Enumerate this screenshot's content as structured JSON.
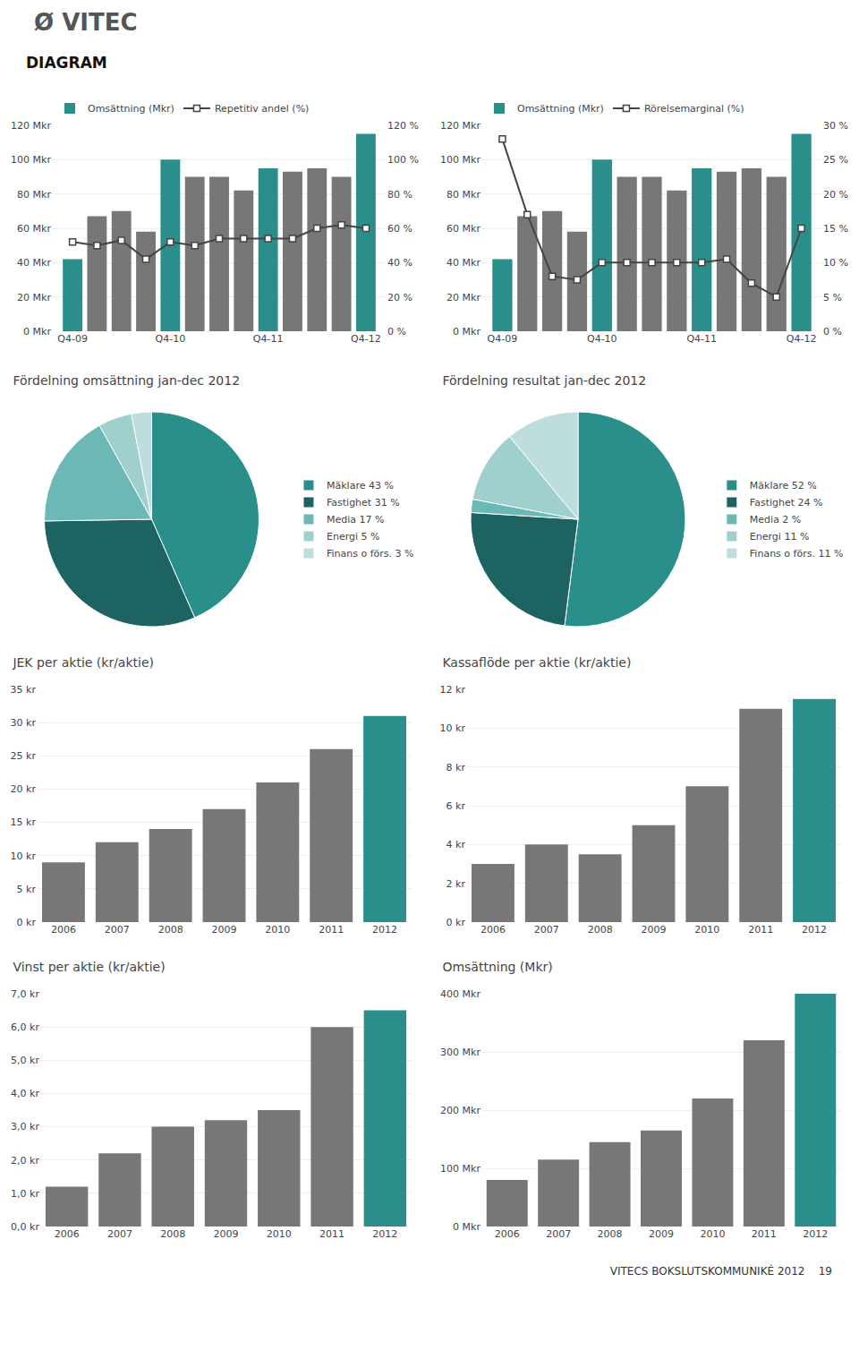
{
  "title": "Ø VITEC",
  "subtitle": "DIAGRAM",
  "annotations": [
    {
      "text": "VITECS BOKSLUTSKOMMUNIKÉ 2012    19"
    }
  ],
  "chart_data": [
    {
      "type": "bar",
      "categories": [
        "Q4-09",
        null,
        null,
        null,
        "Q4-10",
        null,
        null,
        null,
        "Q4-11",
        null,
        null,
        null,
        "Q4-12"
      ],
      "series": [
        {
          "name": "Omsättning (Mkr)",
          "type": "bar",
          "values": [
            42,
            67,
            70,
            58,
            100,
            90,
            90,
            82,
            95,
            93,
            95,
            90,
            115
          ],
          "colors": [
            "#2a8f8a",
            "#777777",
            "#777777",
            "#777777",
            "#2a8f8a",
            "#777777",
            "#777777",
            "#777777",
            "#2a8f8a",
            "#777777",
            "#777777",
            "#777777",
            "#2a8f8a"
          ]
        },
        {
          "name": "Repetitiv andel (%)",
          "type": "line",
          "axis": "y2",
          "color": "#444444",
          "marker": "square",
          "values": [
            52,
            50,
            53,
            42,
            52,
            50,
            54,
            54,
            54,
            54,
            60,
            62,
            60
          ]
        }
      ],
      "ylim": [
        0,
        120
      ],
      "yticks": [
        {
          "value": 0,
          "label": "0 Mkr"
        },
        {
          "value": 20,
          "label": "20 Mkr"
        },
        {
          "value": 40,
          "label": "40 Mkr"
        },
        {
          "value": 60,
          "label": "60 Mkr"
        },
        {
          "value": 80,
          "label": "80 Mkr"
        },
        {
          "value": 100,
          "label": "100 Mkr"
        },
        {
          "value": 120,
          "label": "120 Mkr"
        }
      ],
      "y2lim": [
        0,
        120
      ],
      "y2ticks": [
        {
          "value": 0,
          "label": "0 %"
        },
        {
          "value": 20,
          "label": "20 %"
        },
        {
          "value": 40,
          "label": "40 %"
        },
        {
          "value": 60,
          "label": "60 %"
        },
        {
          "value": 80,
          "label": "80 %"
        },
        {
          "value": 100,
          "label": "100 %"
        },
        {
          "value": 120,
          "label": "120 %"
        }
      ],
      "grid": true,
      "legend": "top"
    },
    {
      "type": "bar",
      "categories": [
        "Q4-09",
        null,
        null,
        null,
        "Q4-10",
        null,
        null,
        null,
        "Q4-11",
        null,
        null,
        null,
        "Q4-12"
      ],
      "series": [
        {
          "name": "Omsättning (Mkr)",
          "type": "bar",
          "values": [
            42,
            67,
            70,
            58,
            100,
            90,
            90,
            82,
            95,
            93,
            95,
            90,
            115
          ],
          "colors": [
            "#2a8f8a",
            "#777777",
            "#777777",
            "#777777",
            "#2a8f8a",
            "#777777",
            "#777777",
            "#777777",
            "#2a8f8a",
            "#777777",
            "#777777",
            "#777777",
            "#2a8f8a"
          ]
        },
        {
          "name": "Rörelsemarginal (%)",
          "type": "line",
          "axis": "y2",
          "color": "#444444",
          "marker": "square",
          "values": [
            28,
            17,
            8,
            7.5,
            10,
            10,
            10,
            10,
            10,
            10.5,
            7,
            5,
            15
          ]
        }
      ],
      "ylim": [
        0,
        120
      ],
      "yticks": [
        {
          "value": 0,
          "label": "0 Mkr"
        },
        {
          "value": 20,
          "label": "20 Mkr"
        },
        {
          "value": 40,
          "label": "40 Mkr"
        },
        {
          "value": 60,
          "label": "60 Mkr"
        },
        {
          "value": 80,
          "label": "80 Mkr"
        },
        {
          "value": 100,
          "label": "100 Mkr"
        },
        {
          "value": 120,
          "label": "120 Mkr"
        }
      ],
      "y2lim": [
        0,
        30
      ],
      "y2ticks": [
        {
          "value": 0,
          "label": "0 %"
        },
        {
          "value": 5,
          "label": "5 %"
        },
        {
          "value": 10,
          "label": "10 %"
        },
        {
          "value": 15,
          "label": "15 %"
        },
        {
          "value": 20,
          "label": "20 %"
        },
        {
          "value": 25,
          "label": "25 %"
        },
        {
          "value": 30,
          "label": "30 %"
        }
      ],
      "grid": true,
      "legend": "top"
    },
    {
      "type": "pie",
      "title": "Fördelning omsättning jan-dec 2012",
      "categories": [
        "Mäklare 43 %",
        "Fastighet 31 %",
        "Media 17 %",
        "Energi 5 %",
        "Finans o förs. 3 %"
      ],
      "values": [
        43,
        31,
        17,
        5,
        3
      ],
      "colors": [
        "#2a8f8a",
        "#1d6361",
        "#6bb8b5",
        "#9fd0ce",
        "#bddedd"
      ],
      "legend": "right"
    },
    {
      "type": "pie",
      "title": "Fördelning resultat jan-dec 2012",
      "categories": [
        "Mäklare 52 %",
        "Fastighet 24 %",
        "Media 2 %",
        "Energi 11 %",
        "Finans o förs. 11 %"
      ],
      "values": [
        52,
        24,
        2,
        11,
        11
      ],
      "colors": [
        "#2a8f8a",
        "#1d6361",
        "#6bb8b5",
        "#9fd0ce",
        "#bddedd"
      ],
      "legend": "right"
    },
    {
      "type": "bar",
      "title": "JEK per aktie (kr/aktie)",
      "categories": [
        "2006",
        "2007",
        "2008",
        "2009",
        "2010",
        "2011",
        "2012"
      ],
      "values": [
        9,
        12,
        14,
        17,
        21,
        26,
        31
      ],
      "colors": [
        "#777777",
        "#777777",
        "#777777",
        "#777777",
        "#777777",
        "#777777",
        "#2a8f8a"
      ],
      "ylim": [
        0,
        35
      ],
      "yticks": [
        {
          "value": 0,
          "label": "0 kr"
        },
        {
          "value": 5,
          "label": "5 kr"
        },
        {
          "value": 10,
          "label": "10 kr"
        },
        {
          "value": 15,
          "label": "15 kr"
        },
        {
          "value": 20,
          "label": "20 kr"
        },
        {
          "value": 25,
          "label": "25 kr"
        },
        {
          "value": 30,
          "label": "30 kr"
        },
        {
          "value": 35,
          "label": "35 kr"
        }
      ],
      "grid": true
    },
    {
      "type": "bar",
      "title": "Kassaflöde per aktie (kr/aktie)",
      "categories": [
        "2006",
        "2007",
        "2008",
        "2009",
        "2010",
        "2011",
        "2012"
      ],
      "values": [
        3,
        4,
        3.5,
        5,
        7,
        11,
        11.5
      ],
      "colors": [
        "#777777",
        "#777777",
        "#777777",
        "#777777",
        "#777777",
        "#777777",
        "#2a8f8a"
      ],
      "ylim": [
        0,
        12
      ],
      "yticks": [
        {
          "value": 0,
          "label": "0 kr"
        },
        {
          "value": 2,
          "label": "2 kr"
        },
        {
          "value": 4,
          "label": "4 kr"
        },
        {
          "value": 6,
          "label": "6 kr"
        },
        {
          "value": 8,
          "label": "8 kr"
        },
        {
          "value": 10,
          "label": "10 kr"
        },
        {
          "value": 12,
          "label": "12 kr"
        }
      ],
      "grid": true
    },
    {
      "type": "bar",
      "title": "Vinst per aktie (kr/aktie)",
      "categories": [
        "2006",
        "2007",
        "2008",
        "2009",
        "2010",
        "2011",
        "2012"
      ],
      "values": [
        1.2,
        2.2,
        3.0,
        3.2,
        3.5,
        6.0,
        6.5
      ],
      "colors": [
        "#777777",
        "#777777",
        "#777777",
        "#777777",
        "#777777",
        "#777777",
        "#2a8f8a"
      ],
      "ylim": [
        0,
        7
      ],
      "yticks": [
        {
          "value": 0,
          "label": "0,0 kr"
        },
        {
          "value": 1,
          "label": "1,0 kr"
        },
        {
          "value": 2,
          "label": "2,0 kr"
        },
        {
          "value": 3,
          "label": "3,0 kr"
        },
        {
          "value": 4,
          "label": "4,0 kr"
        },
        {
          "value": 5,
          "label": "5,0 kr"
        },
        {
          "value": 6,
          "label": "6,0 kr"
        },
        {
          "value": 7,
          "label": "7,0 kr"
        }
      ],
      "grid": true
    },
    {
      "type": "bar",
      "title": "Omsättning (Mkr)",
      "categories": [
        "2006",
        "2007",
        "2008",
        "2009",
        "2010",
        "2011",
        "2012"
      ],
      "values": [
        80,
        115,
        145,
        165,
        220,
        320,
        400
      ],
      "colors": [
        "#777777",
        "#777777",
        "#777777",
        "#777777",
        "#777777",
        "#777777",
        "#2a8f8a"
      ],
      "ylim": [
        0,
        400
      ],
      "yticks": [
        {
          "value": 0,
          "label": "0 Mkr"
        },
        {
          "value": 100,
          "label": "100 Mkr"
        },
        {
          "value": 200,
          "label": "200 Mkr"
        },
        {
          "value": 300,
          "label": "300 Mkr"
        },
        {
          "value": 400,
          "label": "400 Mkr"
        }
      ],
      "grid": true
    }
  ]
}
